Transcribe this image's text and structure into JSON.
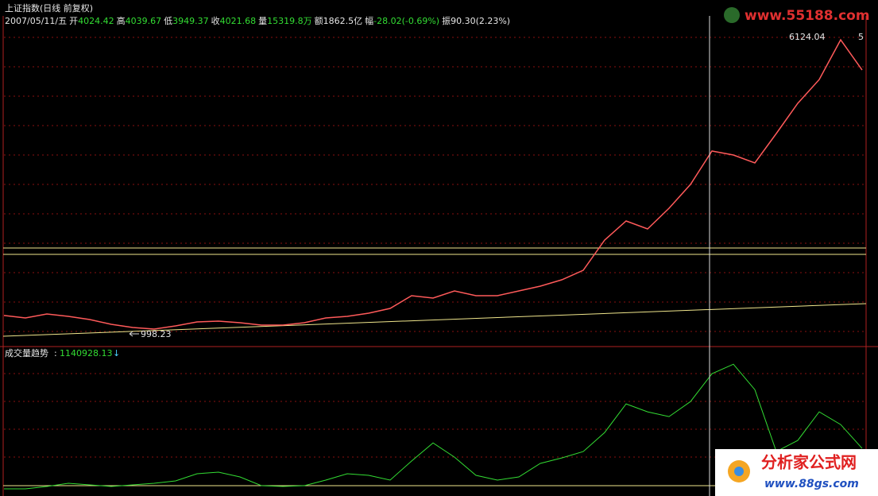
{
  "header": {
    "date": "2007/05/11/五",
    "fields": [
      {
        "label": "开",
        "value": "4024.42"
      },
      {
        "label": "高",
        "value": "4039.67"
      },
      {
        "label": "低",
        "value": "3949.37"
      },
      {
        "label": "收",
        "value": "4021.68"
      },
      {
        "label": "量",
        "value": "15319.8万"
      },
      {
        "label": "额",
        "value": "1862.5亿"
      },
      {
        "label": "幅",
        "value": "-28.02(-0.69%)"
      },
      {
        "label": "振",
        "value": "90.30(2.23%)"
      }
    ]
  },
  "watermark": {
    "top": "www.55188.com",
    "name": "分析家公式网",
    "url": "www.88gs.com"
  },
  "chart_data": [
    {
      "type": "line",
      "title": "上证指数(日线 前复权)",
      "color": "#ff5a5a",
      "ylim": [
        874,
        6220
      ],
      "annotations": [
        "6124.04",
        "998.23",
        "5"
      ],
      "values": [
        1287,
        1245,
        1314,
        1273,
        1218,
        1135,
        1080,
        1053,
        1108,
        1177,
        1190,
        1163,
        1122,
        1122,
        1163,
        1245,
        1273,
        1328,
        1410,
        1630,
        1589,
        1712,
        1630,
        1630,
        1712,
        1795,
        1905,
        2070,
        2592,
        2922,
        2784,
        3141,
        3554,
        4131,
        4062,
        3925,
        4433,
        4955,
        5367,
        6054,
        5532
      ]
    },
    {
      "type": "line",
      "title": "成交量趋势",
      "value_label": "1140928.13",
      "color": "#33dd33",
      "ylim": [
        0,
        1400000
      ],
      "values": [
        0,
        0,
        24105,
        56245,
        40175,
        24105,
        40175,
        56245,
        80350,
        152665,
        168735,
        120525,
        32140,
        24105,
        32140,
        88385,
        152665,
        136595,
        88385,
        281225,
        465030,
        321400,
        136595,
        88385,
        120525,
        257120,
        313365,
        377645,
        570485,
        859745,
        779395,
        731185,
        883850,
        1165075,
        1261495,
        1004375,
        377645,
        490135,
        779395,
        650835,
        409785
      ]
    }
  ]
}
